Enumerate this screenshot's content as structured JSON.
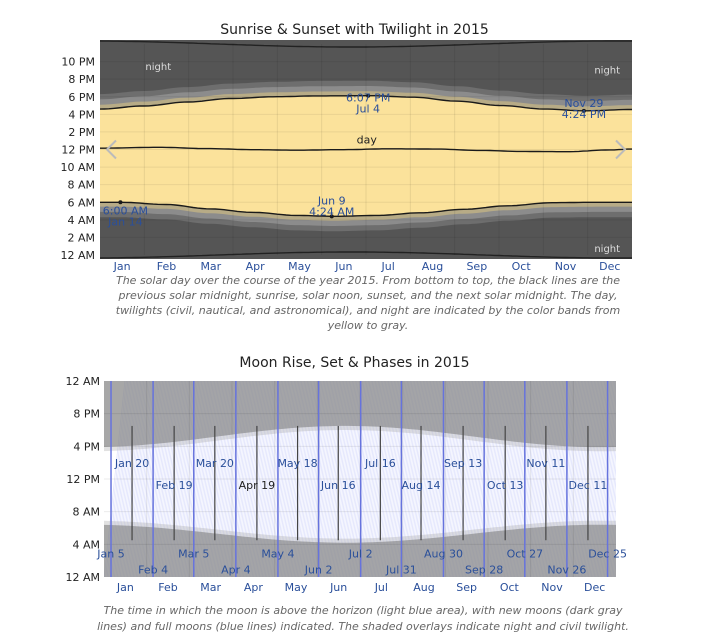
{
  "charts": [
    {
      "title": "Sunrise & Sunset with Twilight in 2015",
      "caption": "The solar day over the course of the year 2015. From bottom to top, the black lines are the previous solar midnight, sunrise, solar noon, sunset, and the next solar midnight. The day, twilights (civil, nautical, and astronomical), and night are indicated by the color bands from yellow to gray.",
      "chart_data": {
        "type": "area",
        "x_ticks": [
          "Jan",
          "Feb",
          "Mar",
          "Apr",
          "May",
          "Jun",
          "Jul",
          "Aug",
          "Sep",
          "Oct",
          "Nov",
          "Dec"
        ],
        "y_ticks": [
          "12 AM",
          "2 AM",
          "4 AM",
          "6 AM",
          "8 AM",
          "10 AM",
          "12 PM",
          "2 PM",
          "4 PM",
          "6 PM",
          "8 PM",
          "10 PM"
        ],
        "ylim_hours": [
          0,
          24
        ],
        "sunrise_hours": {
          "days": [
            0,
            14,
            45,
            75,
            105,
            135,
            160,
            190,
            220,
            250,
            280,
            310,
            340,
            365
          ],
          "values": [
            6.0,
            6.0,
            5.75,
            5.25,
            4.85,
            4.5,
            4.4,
            4.5,
            4.8,
            5.2,
            5.6,
            5.95,
            6.0,
            6.0
          ]
        },
        "sunset_hours": {
          "days": [
            0,
            30,
            60,
            90,
            120,
            150,
            185,
            215,
            245,
            275,
            305,
            333,
            365
          ],
          "values": [
            4.6,
            4.95,
            5.4,
            5.8,
            6.0,
            6.1,
            6.12,
            5.95,
            5.5,
            5.0,
            4.6,
            4.4,
            4.55
          ]
        },
        "solar_noon_hours": {
          "days": [
            0,
            40,
            75,
            105,
            135,
            165,
            200,
            230,
            260,
            290,
            320,
            350,
            365
          ],
          "values": [
            12.15,
            12.25,
            12.1,
            11.98,
            11.92,
            11.98,
            12.08,
            12.05,
            11.9,
            11.78,
            11.75,
            11.95,
            12.05
          ]
        },
        "day_label": "day",
        "night_labels": [
          "night",
          "night",
          "night"
        ],
        "annotations": [
          {
            "text": "6:07 PM",
            "sub": "Jul 4",
            "day": 184,
            "hour": 18.12
          },
          {
            "text": "Nov 29",
            "sub": "4:24 PM",
            "day": 332,
            "hour": 16.4
          },
          {
            "text": "Jun 9",
            "sub": "4:24 AM",
            "day": 159,
            "hour": 4.4
          },
          {
            "text": "6:00 AM",
            "sub": "Jan 14",
            "day": 14,
            "hour": 6.0
          }
        ]
      }
    },
    {
      "title": "Moon Rise, Set & Phases in 2015",
      "caption": "The time in which the moon is above the horizon (light blue area), with new moons (dark gray lines) and full moons (blue lines) indicated. The shaded overlays indicate night and civil twilight.",
      "chart_data": {
        "type": "area",
        "x_ticks": [
          "Jan",
          "Feb",
          "Mar",
          "Apr",
          "May",
          "Jun",
          "Jul",
          "Aug",
          "Sep",
          "Oct",
          "Nov",
          "Dec"
        ],
        "y_ticks": [
          "12 AM",
          "4 AM",
          "8 AM",
          "12 PM",
          "4 PM",
          "8 PM",
          "12 AM"
        ],
        "ylim_hours": [
          0,
          24
        ],
        "full_moons": [
          {
            "label": "Jan 5",
            "day": 5
          },
          {
            "label": "Feb 4",
            "day": 35
          },
          {
            "label": "Mar 5",
            "day": 64
          },
          {
            "label": "Apr 4",
            "day": 94
          },
          {
            "label": "May 4",
            "day": 124
          },
          {
            "label": "Jun 2",
            "day": 153
          },
          {
            "label": "Jul 2",
            "day": 183
          },
          {
            "label": "Jul 31",
            "day": 212
          },
          {
            "label": "Aug 30",
            "day": 242
          },
          {
            "label": "Sep 28",
            "day": 271
          },
          {
            "label": "Oct 27",
            "day": 300
          },
          {
            "label": "Nov 26",
            "day": 330
          },
          {
            "label": "Dec 25",
            "day": 359
          }
        ],
        "new_moons": [
          {
            "label": "Jan 20",
            "day": 20
          },
          {
            "label": "Feb 19",
            "day": 50
          },
          {
            "label": "Mar 20",
            "day": 79
          },
          {
            "label": "Apr 19",
            "day": 109
          },
          {
            "label": "May 18",
            "day": 138
          },
          {
            "label": "Jun 16",
            "day": 167
          },
          {
            "label": "Jul 16",
            "day": 197
          },
          {
            "label": "Aug 14",
            "day": 226
          },
          {
            "label": "Sep 13",
            "day": 256
          },
          {
            "label": "Oct 13",
            "day": 286
          },
          {
            "label": "Nov 11",
            "day": 315
          },
          {
            "label": "Dec 11",
            "day": 345
          }
        ]
      }
    }
  ]
}
